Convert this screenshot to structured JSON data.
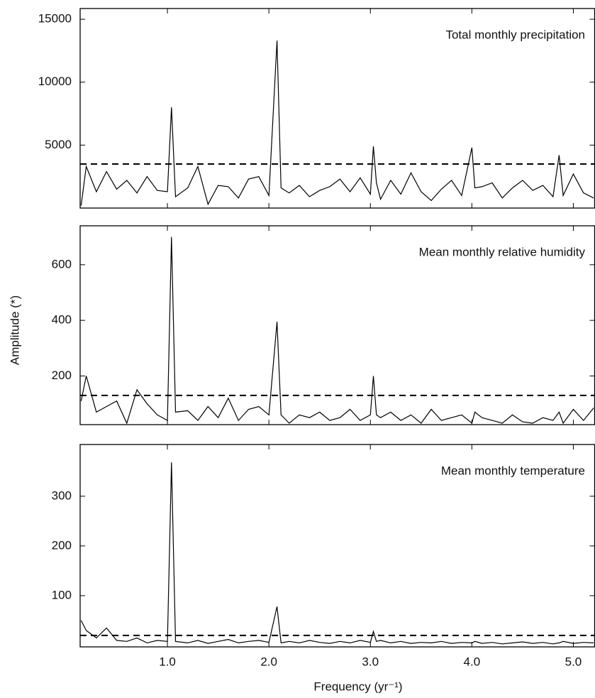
{
  "axes": {
    "xlabel": "Frequency (yr⁻¹)",
    "ylabel": "Amplitude (*)",
    "xlim": [
      0.14,
      5.21
    ],
    "xticks": [
      {
        "value": 1,
        "label": "1.0"
      },
      {
        "value": 2,
        "label": "2.0"
      },
      {
        "value": 3,
        "label": "3.0"
      },
      {
        "value": 4,
        "label": "4.0"
      },
      {
        "value": 5,
        "label": "5.0"
      }
    ]
  },
  "chart_data": [
    {
      "type": "line",
      "title": "Total monthly precipitation",
      "color": "#000000",
      "x": [
        0.15,
        0.2,
        0.3,
        0.4,
        0.5,
        0.6,
        0.7,
        0.8,
        0.9,
        1.0,
        1.04,
        1.08,
        1.2,
        1.3,
        1.4,
        1.5,
        1.6,
        1.7,
        1.8,
        1.9,
        2.0,
        2.08,
        2.12,
        2.2,
        2.3,
        2.4,
        2.5,
        2.6,
        2.7,
        2.8,
        2.9,
        3.0,
        3.03,
        3.06,
        3.1,
        3.2,
        3.3,
        3.4,
        3.5,
        3.6,
        3.7,
        3.8,
        3.9,
        4.0,
        4.03,
        4.1,
        4.2,
        4.3,
        4.4,
        4.5,
        4.6,
        4.7,
        4.8,
        4.86,
        4.9,
        5.0,
        5.1,
        5.2
      ],
      "values": [
        200,
        3300,
        1300,
        2900,
        1500,
        2200,
        1200,
        2500,
        1400,
        1300,
        8000,
        900,
        1600,
        3300,
        300,
        1800,
        1700,
        800,
        2300,
        2500,
        1000,
        13300,
        1600,
        1200,
        1800,
        900,
        1400,
        1700,
        2300,
        1300,
        2400,
        1100,
        4900,
        2000,
        700,
        2200,
        1100,
        2800,
        1300,
        600,
        1500,
        2200,
        1000,
        4800,
        1600,
        1700,
        2000,
        800,
        1600,
        2200,
        1400,
        1800,
        900,
        4200,
        1000,
        2700,
        1200,
        800
      ],
      "threshold": 3500,
      "ylim": [
        0,
        15850
      ],
      "yticks": [
        5000,
        10000,
        15000
      ]
    },
    {
      "type": "line",
      "title": "Mean monthly relative humidity",
      "color": "#000000",
      "x": [
        0.15,
        0.2,
        0.3,
        0.4,
        0.5,
        0.6,
        0.7,
        0.8,
        0.9,
        1.0,
        1.04,
        1.08,
        1.2,
        1.3,
        1.4,
        1.5,
        1.6,
        1.7,
        1.8,
        1.9,
        2.0,
        2.08,
        2.12,
        2.2,
        2.3,
        2.4,
        2.5,
        2.6,
        2.7,
        2.8,
        2.9,
        3.0,
        3.03,
        3.06,
        3.1,
        3.2,
        3.3,
        3.4,
        3.5,
        3.6,
        3.7,
        3.8,
        3.9,
        4.0,
        4.03,
        4.1,
        4.2,
        4.3,
        4.4,
        4.5,
        4.6,
        4.7,
        4.8,
        4.86,
        4.9,
        5.0,
        5.1,
        5.2
      ],
      "values": [
        110,
        200,
        70,
        90,
        110,
        30,
        150,
        100,
        60,
        40,
        700,
        70,
        75,
        40,
        90,
        50,
        120,
        40,
        80,
        90,
        60,
        395,
        60,
        30,
        60,
        50,
        70,
        40,
        50,
        80,
        40,
        60,
        200,
        60,
        50,
        70,
        40,
        60,
        30,
        80,
        40,
        50,
        60,
        30,
        70,
        50,
        40,
        30,
        60,
        35,
        30,
        50,
        40,
        70,
        30,
        80,
        40,
        85
      ],
      "threshold": 130,
      "ylim": [
        25,
        740
      ],
      "yticks": [
        200,
        400,
        600
      ]
    },
    {
      "type": "line",
      "title": "Mean monthly temperature",
      "color": "#000000",
      "x": [
        0.15,
        0.2,
        0.3,
        0.4,
        0.5,
        0.6,
        0.7,
        0.8,
        0.9,
        1.0,
        1.04,
        1.08,
        1.2,
        1.3,
        1.4,
        1.5,
        1.6,
        1.7,
        1.8,
        1.9,
        2.0,
        2.08,
        2.12,
        2.2,
        2.3,
        2.4,
        2.5,
        2.6,
        2.7,
        2.8,
        2.9,
        3.0,
        3.03,
        3.06,
        3.1,
        3.2,
        3.3,
        3.4,
        3.5,
        3.6,
        3.7,
        3.8,
        3.9,
        4.0,
        4.03,
        4.1,
        4.2,
        4.3,
        4.4,
        4.5,
        4.6,
        4.7,
        4.8,
        4.86,
        4.9,
        5.0,
        5.1,
        5.2
      ],
      "values": [
        50,
        30,
        15,
        35,
        10,
        8,
        15,
        5,
        10,
        8,
        368,
        8,
        5,
        10,
        4,
        8,
        12,
        5,
        8,
        10,
        6,
        78,
        5,
        8,
        5,
        10,
        6,
        4,
        8,
        5,
        10,
        6,
        28,
        8,
        10,
        5,
        8,
        4,
        6,
        5,
        8,
        4,
        6,
        5,
        8,
        4,
        6,
        3,
        5,
        7,
        4,
        6,
        3,
        5,
        8,
        4,
        6,
        5
      ],
      "threshold": 20,
      "ylim": [
        -3,
        404
      ],
      "yticks": [
        100,
        200,
        300
      ]
    }
  ]
}
